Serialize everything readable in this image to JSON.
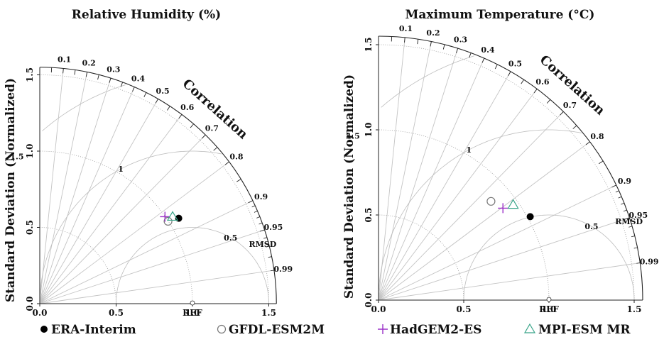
{
  "chart_data": [
    {
      "type": "taylor",
      "title": "Relative Humidity (%)",
      "ylabel": "Standard Deviation (Normalized)",
      "corr_label": "Correlation",
      "rmsd_label": "RMSD",
      "ref_label": "REF",
      "x_ticks": [
        "0.0",
        "0.5",
        "1.0",
        "1.5"
      ],
      "y_ticks": [
        "0.0",
        "0.5",
        "1.0",
        "1.5"
      ],
      "sd_max": 1.55,
      "corr_ticks": [
        "0.1",
        "0.2",
        "0.3",
        "0.4",
        "0.5",
        "0.6",
        "0.7",
        "0.8",
        "0.9",
        "0.95",
        "0.99"
      ],
      "rmsd_contours": [
        "0.5",
        "1",
        "1.5"
      ],
      "points": [
        {
          "model": "ERA-Interim",
          "x": 0.91,
          "y": 0.56
        },
        {
          "model": "GFDL-ESM2M",
          "x": 0.84,
          "y": 0.54
        },
        {
          "model": "HadGEM2-ES",
          "x": 0.82,
          "y": 0.57
        },
        {
          "model": "MPI-ESM MR",
          "x": 0.87,
          "y": 0.57
        }
      ]
    },
    {
      "type": "taylor",
      "title": "Maximum Temperature (°C)",
      "ylabel": "Standard Deviation (Normalized)",
      "corr_label": "Correlation",
      "rmsd_label": "RMSD",
      "ref_label": "REF",
      "x_ticks": [
        "0.0",
        "0.5",
        "1.0",
        "1.5"
      ],
      "y_ticks": [
        "0.0",
        "0.5",
        "1.0",
        "1.5"
      ],
      "sd_max": 1.55,
      "corr_ticks": [
        "0.1",
        "0.2",
        "0.3",
        "0.4",
        "0.5",
        "0.6",
        "0.7",
        "0.8",
        "0.9",
        "0.95",
        "0.99"
      ],
      "rmsd_contours": [
        "0.5",
        "1",
        "1.5"
      ],
      "points": [
        {
          "model": "ERA-Interim",
          "x": 0.89,
          "y": 0.49
        },
        {
          "model": "GFDL-ESM2M",
          "x": 0.66,
          "y": 0.58
        },
        {
          "model": "HadGEM2-ES",
          "x": 0.73,
          "y": 0.54
        },
        {
          "model": "MPI-ESM MR",
          "x": 0.79,
          "y": 0.56
        }
      ]
    }
  ],
  "legend": [
    {
      "label": "ERA-Interim",
      "symbol": "filled-circle",
      "color": "#000000"
    },
    {
      "label": "GFDL-ESM2M",
      "symbol": "open-circle",
      "color": "#777777"
    },
    {
      "label": "HadGEM2-ES",
      "symbol": "plus",
      "color": "#9b30c8"
    },
    {
      "label": "MPI-ESM MR",
      "symbol": "triangle",
      "color": "#3aa58a"
    }
  ]
}
